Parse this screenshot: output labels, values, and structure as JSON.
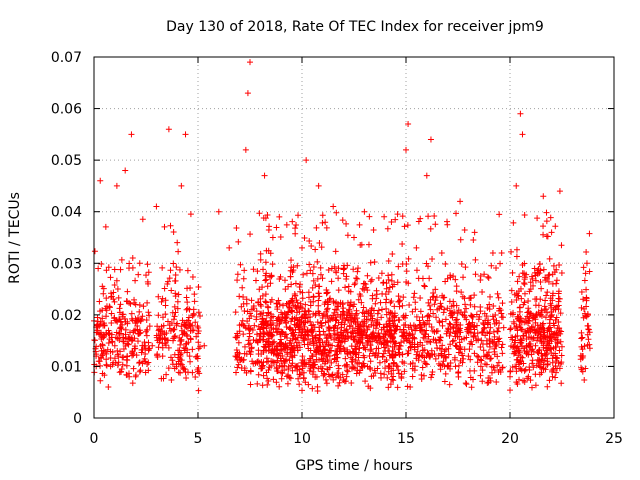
{
  "chart_data": {
    "type": "scatter",
    "title": "Day 130 of 2018, Rate Of TEC Index for receiver jpm9",
    "xlabel": "GPS time / hours",
    "ylabel": "ROTI / TECUs",
    "xlim": [
      0,
      25
    ],
    "ylim": [
      0,
      0.07
    ],
    "x_ticks": [
      0,
      5,
      10,
      15,
      20,
      25
    ],
    "x_tick_labels": [
      "0",
      "5",
      "10",
      "15",
      "20",
      "25"
    ],
    "y_ticks": [
      0,
      0.01,
      0.02,
      0.03,
      0.04,
      0.05,
      0.06,
      0.07
    ],
    "y_tick_labels": [
      "0",
      "0.01",
      "0.02",
      "0.03",
      "0.04",
      "0.05",
      "0.06",
      "0.07"
    ],
    "grid": true,
    "marker": "+",
    "series_color": "#ff0000",
    "series": [
      {
        "name": "ROTI",
        "x": [
          0.1,
          0.2,
          0.3,
          0.5,
          0.8,
          1.0,
          1.1,
          1.3,
          1.5,
          1.6,
          1.8,
          2.0,
          2.2,
          2.4,
          2.6,
          2.8,
          3.0,
          3.3,
          3.6,
          3.8,
          4.0,
          4.2,
          4.4,
          4.6,
          4.8,
          5.0,
          5.3,
          6.0,
          6.5,
          6.8,
          7.0,
          7.2,
          7.3,
          7.4,
          7.5,
          7.6,
          7.8,
          8.0,
          8.2,
          8.4,
          8.6,
          8.8,
          9.0,
          9.2,
          9.5,
          9.8,
          10.0,
          10.2,
          10.5,
          10.8,
          11.0,
          11.2,
          11.5,
          11.8,
          12.0,
          12.2,
          12.5,
          12.8,
          13.0,
          13.3,
          13.6,
          14.0,
          14.3,
          14.6,
          14.9,
          15.0,
          15.1,
          15.2,
          15.5,
          15.8,
          16.0,
          16.2,
          16.5,
          16.8,
          17.0,
          17.3,
          17.6,
          18.0,
          18.3,
          18.6,
          19.0,
          19.3,
          19.6,
          20.0,
          20.3,
          20.5,
          20.6,
          20.7,
          21.0,
          21.3,
          21.6,
          21.8,
          22.0,
          22.2,
          22.4,
          23.5,
          23.7
        ],
        "y": [
          0.012,
          0.029,
          0.046,
          0.018,
          0.01,
          0.014,
          0.045,
          0.009,
          0.048,
          0.012,
          0.055,
          0.008,
          0.03,
          0.011,
          0.026,
          0.014,
          0.041,
          0.012,
          0.056,
          0.015,
          0.034,
          0.045,
          0.055,
          0.012,
          0.02,
          0.009,
          0.014,
          0.04,
          0.033,
          0.012,
          0.018,
          0.027,
          0.052,
          0.063,
          0.069,
          0.011,
          0.015,
          0.022,
          0.047,
          0.013,
          0.035,
          0.018,
          0.011,
          0.025,
          0.014,
          0.019,
          0.033,
          0.05,
          0.012,
          0.045,
          0.011,
          0.021,
          0.041,
          0.013,
          0.028,
          0.009,
          0.035,
          0.016,
          0.04,
          0.011,
          0.024,
          0.013,
          0.038,
          0.01,
          0.018,
          0.052,
          0.057,
          0.006,
          0.033,
          0.012,
          0.047,
          0.054,
          0.021,
          0.011,
          0.027,
          0.015,
          0.042,
          0.012,
          0.036,
          0.01,
          0.022,
          0.014,
          0.032,
          0.008,
          0.045,
          0.059,
          0.055,
          0.013,
          0.025,
          0.015,
          0.043,
          0.011,
          0.036,
          0.019,
          0.044,
          0.009,
          0.03
        ],
        "additional_points_note": "dense cluster of several thousand points, mostly between 0.005 and 0.03 TECUs over 0-24 hours"
      }
    ]
  }
}
